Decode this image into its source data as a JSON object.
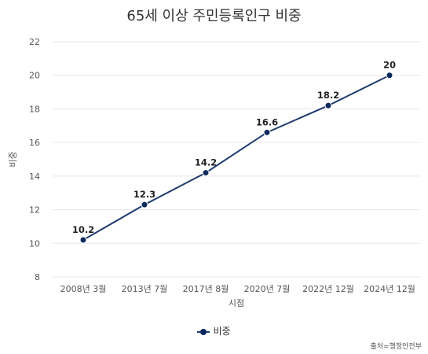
{
  "chart_data": {
    "type": "line",
    "title": "65세 이상 주민등록인구 비중",
    "xlabel": "시점",
    "ylabel": "비중",
    "categories": [
      "2008년 3월",
      "2013년 7월",
      "2017년 8월",
      "2020년 7월",
      "2022년 12월",
      "2024년 12월"
    ],
    "series": [
      {
        "name": "비중",
        "values": [
          10.2,
          12.3,
          14.2,
          16.6,
          18.2,
          20
        ],
        "color": "#0b2a5c"
      }
    ],
    "data_labels": [
      "10.2",
      "12.3",
      "14.2",
      "16.6",
      "18.2",
      "20"
    ],
    "ylim": [
      8,
      22
    ],
    "yticks": [
      8,
      10,
      12,
      14,
      16,
      18,
      20,
      22
    ],
    "grid": true,
    "legend_position": "bottom-center"
  },
  "source": "출처=행정안전부"
}
